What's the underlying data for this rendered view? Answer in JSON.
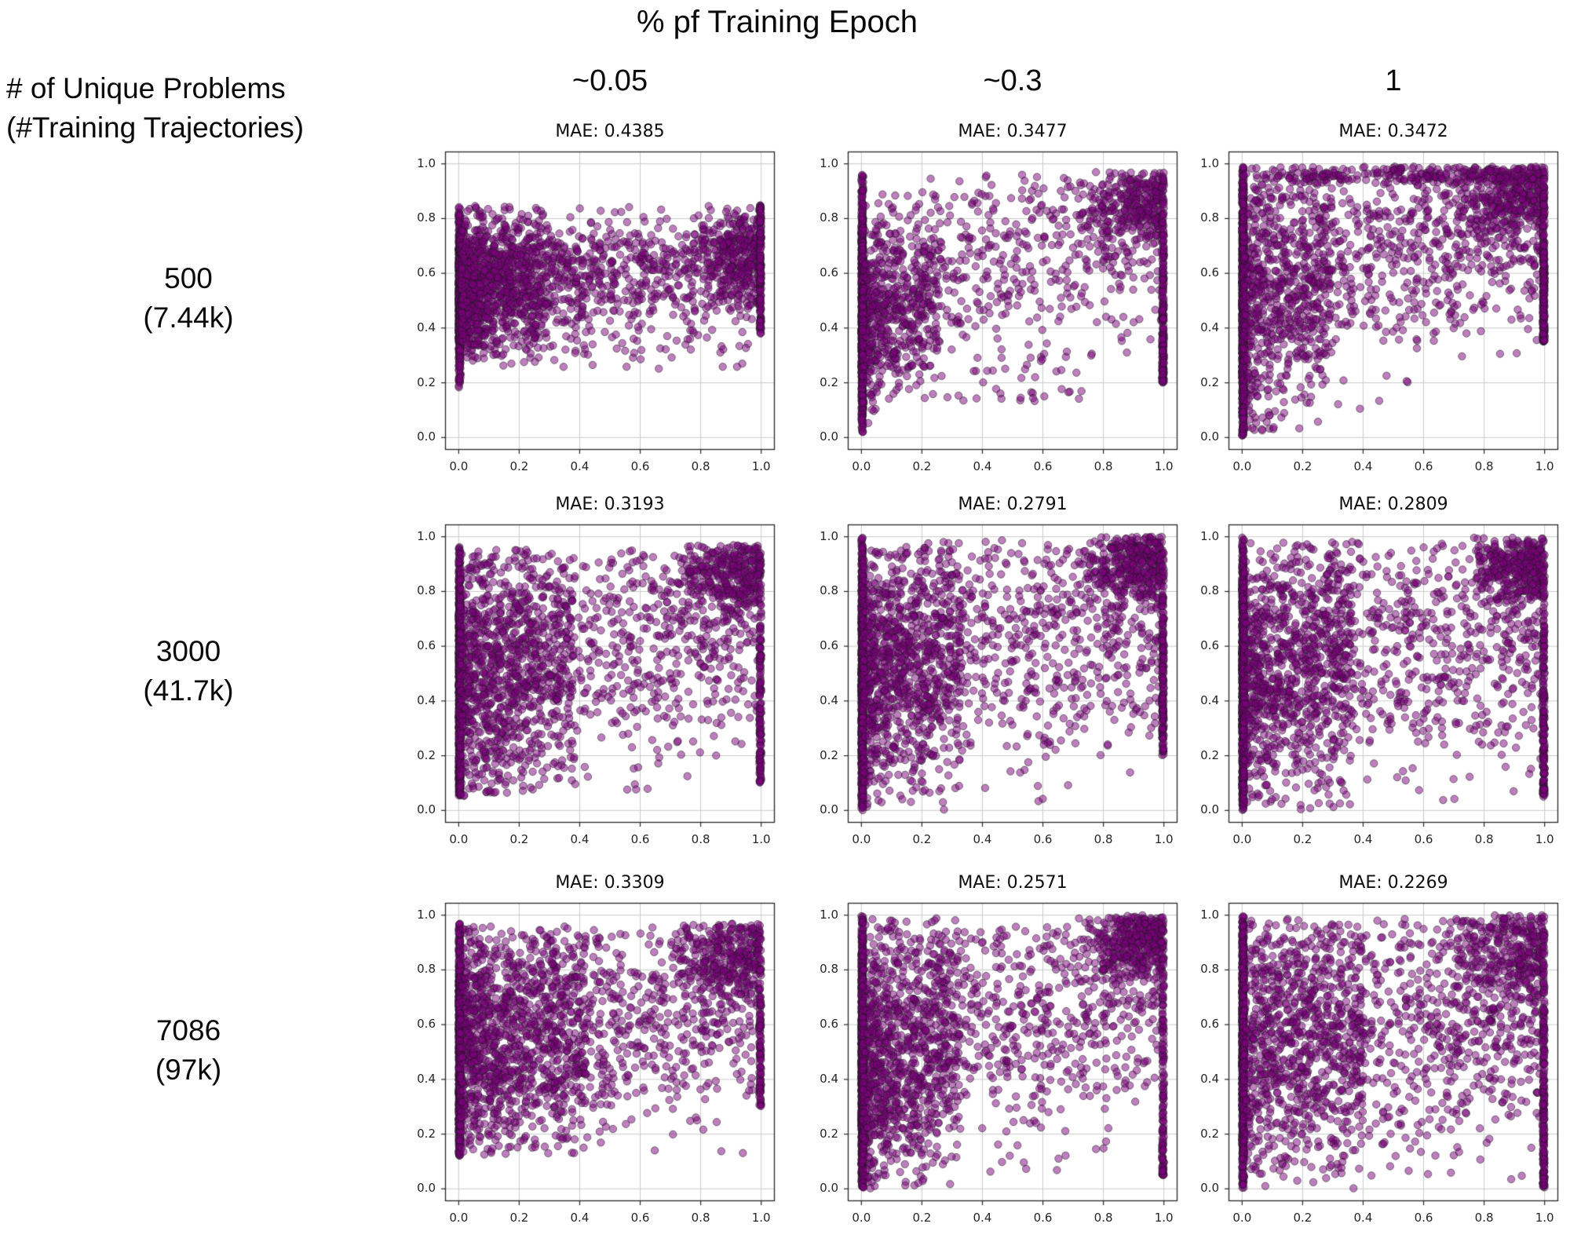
{
  "title": "% pf Training Epoch",
  "row_axis_title": {
    "line1": "# of Unique Problems",
    "line2": "(#Training Trajectories)"
  },
  "columns": [
    {
      "label": "~0.05"
    },
    {
      "label": "~0.3"
    },
    {
      "label": "1"
    }
  ],
  "rows": [
    {
      "label_main": "500",
      "label_sub": "(7.44k)"
    },
    {
      "label_main": "3000",
      "label_sub": "(41.7k)"
    },
    {
      "label_main": "7086",
      "label_sub": "(97k)"
    }
  ],
  "axes": {
    "x_ticks": [
      "0.0",
      "0.2",
      "0.4",
      "0.6",
      "0.8",
      "1.0"
    ],
    "y_ticks": [
      "0.0",
      "0.2",
      "0.4",
      "0.6",
      "0.8",
      "1.0"
    ],
    "tick_values": [
      0,
      0.2,
      0.4,
      0.6,
      0.8,
      1.0
    ],
    "xlim": [
      -0.045,
      1.045
    ],
    "ylim": [
      -0.045,
      1.045
    ],
    "grid": true
  },
  "style": {
    "point_color": "#800080",
    "point_alpha": 0.5,
    "point_edge_color": "#191919",
    "point_edge_alpha": 0.55,
    "point_radius": 4.7,
    "grid_color": "#c9c9c9",
    "spine_color": "#262626",
    "background": "#ffffff"
  },
  "chart_data": [
    {
      "type": "scatter",
      "row": 0,
      "col": 0,
      "row_label": "500 (7.44k)",
      "col_label": "~0.05",
      "mae": 0.4385,
      "mae_label": "MAE: 0.4385",
      "seed": 11,
      "note": "dense vertical band at x=0 (y 0.18-0.85); mid-band of points y 0.3-0.85 converging toward y~0.65 at right; dense blob and stripe at x=1",
      "clusters": [
        {
          "n": 650,
          "x": [
            0,
            0.006
          ],
          "xbias": 1,
          "ymode": "gauss",
          "ymean": [
            0.5,
            0.5
          ],
          "ysd": 0.15,
          "yclip": [
            0.18,
            0.85
          ]
        },
        {
          "n": 520,
          "x": [
            0.004,
            0.28
          ],
          "xbias": 1.6,
          "ymode": "gauss",
          "ymean": [
            0.52,
            0.58
          ],
          "ysd": 0.14,
          "yclip": [
            0.26,
            0.84
          ]
        },
        {
          "n": 1350,
          "x": [
            0.01,
            1.0
          ],
          "xbias": 1.9,
          "ymode": "gauss",
          "ymean": [
            0.55,
            0.66
          ],
          "ysd": 0.115,
          "yclip": [
            0.3,
            0.85
          ]
        },
        {
          "n": 60,
          "x": [
            0.05,
            1.0
          ],
          "xbias": 1.2,
          "ymode": "uniform",
          "yrange": [
            0.24,
            0.45
          ],
          "ybias": 1
        },
        {
          "n": 260,
          "x": [
            0.8,
            1.0
          ],
          "xbias": 0.55,
          "ymode": "gauss",
          "ymean": [
            0.62,
            0.66
          ],
          "ysd": 0.1,
          "yclip": [
            0.38,
            0.85
          ]
        },
        {
          "n": 130,
          "x": [
            0.995,
            1.0
          ],
          "xbias": 1,
          "ymode": "uniform",
          "yrange": [
            0.38,
            0.85
          ],
          "ybias": 1
        }
      ]
    },
    {
      "type": "scatter",
      "row": 0,
      "col": 1,
      "row_label": "500 (7.44k)",
      "col_label": "~0.3",
      "mae": 0.3477,
      "mae_label": "MAE: 0.3477",
      "seed": 12,
      "note": "full-height band at x=0; dense lower-left wedge; sparse middle; dense upper-right and stripe at x=1",
      "clusters": [
        {
          "n": 700,
          "x": [
            0,
            0.006
          ],
          "xbias": 1,
          "ymode": "gauss",
          "ymean": [
            0.45,
            0.45
          ],
          "ysd": 0.28,
          "yclip": [
            0.02,
            0.97
          ]
        },
        {
          "n": 560,
          "x": [
            0.004,
            0.26
          ],
          "xbias": 1.7,
          "ymode": "gauss",
          "ymean": [
            0.42,
            0.5
          ],
          "ysd": 0.16,
          "yclip": [
            0.05,
            0.9
          ]
        },
        {
          "n": 520,
          "x": [
            0.03,
            1.0
          ],
          "xbias": 1.0,
          "ymode": "gauss",
          "ymean": [
            0.6,
            0.75
          ],
          "ysd": 0.19,
          "yclip": [
            0.13,
            0.96
          ]
        },
        {
          "n": 300,
          "x": [
            0.72,
            1.0
          ],
          "xbias": 0.55,
          "ymode": "gauss",
          "ymean": [
            0.85,
            0.88
          ],
          "ysd": 0.08,
          "yclip": [
            0.6,
            0.97
          ]
        },
        {
          "n": 210,
          "x": [
            0.994,
            1.0
          ],
          "xbias": 1,
          "ymode": "uniform",
          "yrange": [
            0.2,
            0.97
          ],
          "ybias": 0.55
        },
        {
          "n": 40,
          "x": [
            0.1,
            0.75
          ],
          "xbias": 1,
          "ymode": "uniform",
          "yrange": [
            0.13,
            0.3
          ],
          "ybias": 1
        }
      ]
    },
    {
      "type": "scatter",
      "row": 0,
      "col": 2,
      "row_label": "500 (7.44k)",
      "col_label": "1",
      "mae": 0.3472,
      "mae_label": "MAE: 0.3472",
      "seed": 13,
      "note": "full-height band at x=0; positive trend, dense along top edge and top-right corner; stripe at x=1",
      "clusters": [
        {
          "n": 850,
          "x": [
            0,
            0.006
          ],
          "xbias": 1,
          "ymode": "gauss",
          "ymean": [
            0.5,
            0.5
          ],
          "ysd": 0.3,
          "yclip": [
            0.0,
            0.99
          ]
        },
        {
          "n": 600,
          "x": [
            0.004,
            0.3
          ],
          "xbias": 1.6,
          "ymode": "gauss",
          "ymean": [
            0.45,
            0.6
          ],
          "ysd": 0.26,
          "yclip": [
            0.02,
            0.97
          ]
        },
        {
          "n": 800,
          "x": [
            0.03,
            1.0
          ],
          "xbias": 1.0,
          "ymode": "gauss",
          "ymean": [
            0.6,
            0.8
          ],
          "ysd": 0.2,
          "yclip": [
            0.05,
            0.97
          ]
        },
        {
          "n": 260,
          "x": [
            0.03,
            1.0
          ],
          "xbias": 0.8,
          "ymode": "uniform",
          "yrange": [
            0.93,
            0.99
          ],
          "ybias": 1
        },
        {
          "n": 280,
          "x": [
            0.7,
            1.0
          ],
          "xbias": 0.55,
          "ymode": "gauss",
          "ymean": [
            0.85,
            0.9
          ],
          "ysd": 0.07,
          "yclip": [
            0.65,
            0.99
          ]
        },
        {
          "n": 230,
          "x": [
            0.994,
            1.0
          ],
          "xbias": 1,
          "ymode": "uniform",
          "yrange": [
            0.35,
            0.99
          ],
          "ybias": 0.55
        }
      ]
    },
    {
      "type": "scatter",
      "row": 1,
      "col": 0,
      "row_label": "3000 (41.7k)",
      "col_label": "~0.05",
      "mae": 0.3193,
      "mae_label": "MAE: 0.3193",
      "seed": 21,
      "clusters": [
        {
          "n": 800,
          "x": [
            0,
            0.006
          ],
          "xbias": 1,
          "ymode": "gauss",
          "ymean": [
            0.45,
            0.45
          ],
          "ysd": 0.28,
          "yclip": [
            0.05,
            0.97
          ]
        },
        {
          "n": 850,
          "x": [
            0.004,
            0.38
          ],
          "xbias": 1.6,
          "ymode": "gauss",
          "ymean": [
            0.45,
            0.55
          ],
          "ysd": 0.25,
          "yclip": [
            0.05,
            0.96
          ]
        },
        {
          "n": 800,
          "x": [
            0.03,
            1.0
          ],
          "xbias": 1.0,
          "ymode": "gauss",
          "ymean": [
            0.55,
            0.68
          ],
          "ysd": 0.23,
          "yclip": [
            0.06,
            0.96
          ]
        },
        {
          "n": 340,
          "x": [
            0.72,
            1.0
          ],
          "xbias": 0.55,
          "ymode": "gauss",
          "ymean": [
            0.86,
            0.9
          ],
          "ysd": 0.08,
          "yclip": [
            0.62,
            0.97
          ]
        },
        {
          "n": 150,
          "x": [
            0.994,
            1.0
          ],
          "xbias": 1,
          "ymode": "uniform",
          "yrange": [
            0.1,
            0.97
          ],
          "ybias": 0.55
        }
      ]
    },
    {
      "type": "scatter",
      "row": 1,
      "col": 1,
      "row_label": "3000 (41.7k)",
      "col_label": "~0.3",
      "mae": 0.2791,
      "mae_label": "MAE: 0.2791",
      "seed": 22,
      "clusters": [
        {
          "n": 900,
          "x": [
            0,
            0.006
          ],
          "xbias": 1,
          "ymode": "gauss",
          "ymean": [
            0.45,
            0.45
          ],
          "ysd": 0.3,
          "yclip": [
            0.0,
            1.0
          ]
        },
        {
          "n": 850,
          "x": [
            0.004,
            0.33
          ],
          "xbias": 1.6,
          "ymode": "gauss",
          "ymean": [
            0.45,
            0.55
          ],
          "ysd": 0.26,
          "yclip": [
            0.0,
            0.98
          ]
        },
        {
          "n": 800,
          "x": [
            0.03,
            1.0
          ],
          "xbias": 1.0,
          "ymode": "gauss",
          "ymean": [
            0.55,
            0.72
          ],
          "ysd": 0.24,
          "yclip": [
            0.02,
            0.99
          ]
        },
        {
          "n": 380,
          "x": [
            0.72,
            1.0
          ],
          "xbias": 0.5,
          "ymode": "gauss",
          "ymean": [
            0.88,
            0.93
          ],
          "ysd": 0.07,
          "yclip": [
            0.68,
            1.0
          ]
        },
        {
          "n": 160,
          "x": [
            0.994,
            1.0
          ],
          "xbias": 1,
          "ymode": "uniform",
          "yrange": [
            0.2,
            1.0
          ],
          "ybias": 0.5
        }
      ]
    },
    {
      "type": "scatter",
      "row": 1,
      "col": 2,
      "row_label": "3000 (41.7k)",
      "col_label": "1",
      "mae": 0.2809,
      "mae_label": "MAE: 0.2809",
      "seed": 23,
      "clusters": [
        {
          "n": 880,
          "x": [
            0,
            0.006
          ],
          "xbias": 1,
          "ymode": "gauss",
          "ymean": [
            0.45,
            0.45
          ],
          "ysd": 0.3,
          "yclip": [
            0.0,
            1.0
          ]
        },
        {
          "n": 820,
          "x": [
            0.004,
            0.36
          ],
          "xbias": 1.6,
          "ymode": "gauss",
          "ymean": [
            0.45,
            0.55
          ],
          "ysd": 0.26,
          "yclip": [
            0.0,
            0.98
          ]
        },
        {
          "n": 820,
          "x": [
            0.03,
            1.0
          ],
          "xbias": 1.0,
          "ymode": "gauss",
          "ymean": [
            0.55,
            0.7
          ],
          "ysd": 0.25,
          "yclip": [
            0.02,
            0.99
          ]
        },
        {
          "n": 340,
          "x": [
            0.72,
            1.0
          ],
          "xbias": 0.5,
          "ymode": "gauss",
          "ymean": [
            0.88,
            0.92
          ],
          "ysd": 0.07,
          "yclip": [
            0.66,
            1.0
          ]
        },
        {
          "n": 200,
          "x": [
            0.994,
            1.0
          ],
          "xbias": 1,
          "ymode": "uniform",
          "yrange": [
            0.05,
            1.0
          ],
          "ybias": 0.5
        }
      ]
    },
    {
      "type": "scatter",
      "row": 2,
      "col": 0,
      "row_label": "7086 (97k)",
      "col_label": "~0.05",
      "mae": 0.3309,
      "mae_label": "MAE: 0.3309",
      "seed": 31,
      "clusters": [
        {
          "n": 780,
          "x": [
            0,
            0.006
          ],
          "xbias": 1,
          "ymode": "gauss",
          "ymean": [
            0.5,
            0.5
          ],
          "ysd": 0.26,
          "yclip": [
            0.12,
            0.97
          ]
        },
        {
          "n": 950,
          "x": [
            0.004,
            0.42
          ],
          "xbias": 1.5,
          "ymode": "gauss",
          "ymean": [
            0.5,
            0.6
          ],
          "ysd": 0.24,
          "yclip": [
            0.12,
            0.96
          ]
        },
        {
          "n": 800,
          "x": [
            0.03,
            1.0
          ],
          "xbias": 1.0,
          "ymode": "gauss",
          "ymean": [
            0.55,
            0.68
          ],
          "ysd": 0.22,
          "yclip": [
            0.12,
            0.96
          ]
        },
        {
          "n": 300,
          "x": [
            0.7,
            1.0
          ],
          "xbias": 0.6,
          "ymode": "gauss",
          "ymean": [
            0.85,
            0.88
          ],
          "ysd": 0.08,
          "yclip": [
            0.6,
            0.97
          ]
        },
        {
          "n": 110,
          "x": [
            0.994,
            1.0
          ],
          "xbias": 1,
          "ymode": "uniform",
          "yrange": [
            0.3,
            0.97
          ],
          "ybias": 0.6
        }
      ]
    },
    {
      "type": "scatter",
      "row": 2,
      "col": 1,
      "row_label": "7086 (97k)",
      "col_label": "~0.3",
      "mae": 0.2571,
      "mae_label": "MAE: 0.2571",
      "seed": 32,
      "clusters": [
        {
          "n": 980,
          "x": [
            0,
            0.006
          ],
          "xbias": 1,
          "ymode": "gauss",
          "ymean": [
            0.45,
            0.45
          ],
          "ysd": 0.3,
          "yclip": [
            0.0,
            1.0
          ]
        },
        {
          "n": 900,
          "x": [
            0.004,
            0.32
          ],
          "xbias": 1.7,
          "ymode": "gauss",
          "ymean": [
            0.4,
            0.55
          ],
          "ysd": 0.26,
          "yclip": [
            0.0,
            0.99
          ]
        },
        {
          "n": 780,
          "x": [
            0.03,
            1.0
          ],
          "xbias": 1.0,
          "ymode": "gauss",
          "ymean": [
            0.55,
            0.75
          ],
          "ysd": 0.24,
          "yclip": [
            0.03,
            0.99
          ]
        },
        {
          "n": 380,
          "x": [
            0.72,
            1.0
          ],
          "xbias": 0.5,
          "ymode": "gauss",
          "ymean": [
            0.88,
            0.93
          ],
          "ysd": 0.07,
          "yclip": [
            0.68,
            1.0
          ]
        },
        {
          "n": 130,
          "x": [
            0.994,
            1.0
          ],
          "xbias": 1,
          "ymode": "uniform",
          "yrange": [
            0.05,
            1.0
          ],
          "ybias": 0.5
        }
      ]
    },
    {
      "type": "scatter",
      "row": 2,
      "col": 2,
      "row_label": "7086 (97k)",
      "col_label": "1",
      "mae": 0.2269,
      "mae_label": "MAE: 0.2269",
      "seed": 33,
      "clusters": [
        {
          "n": 880,
          "x": [
            0,
            0.006
          ],
          "xbias": 1,
          "ymode": "gauss",
          "ymean": [
            0.5,
            0.5
          ],
          "ysd": 0.3,
          "yclip": [
            0.0,
            1.0
          ]
        },
        {
          "n": 700,
          "x": [
            0.004,
            0.4
          ],
          "xbias": 1.3,
          "ymode": "gauss",
          "ymean": [
            0.5,
            0.6
          ],
          "ysd": 0.27,
          "yclip": [
            0.0,
            0.99
          ]
        },
        {
          "n": 900,
          "x": [
            0.03,
            1.0
          ],
          "xbias": 0.9,
          "ymode": "gauss",
          "ymean": [
            0.55,
            0.68
          ],
          "ysd": 0.26,
          "yclip": [
            0.02,
            0.99
          ]
        },
        {
          "n": 300,
          "x": [
            0.7,
            1.0
          ],
          "xbias": 0.6,
          "ymode": "gauss",
          "ymean": [
            0.85,
            0.9
          ],
          "ysd": 0.1,
          "yclip": [
            0.55,
            1.0
          ]
        },
        {
          "n": 210,
          "x": [
            0.994,
            1.0
          ],
          "xbias": 1,
          "ymode": "uniform",
          "yrange": [
            0.0,
            1.0
          ],
          "ybias": 0.6
        }
      ]
    }
  ]
}
